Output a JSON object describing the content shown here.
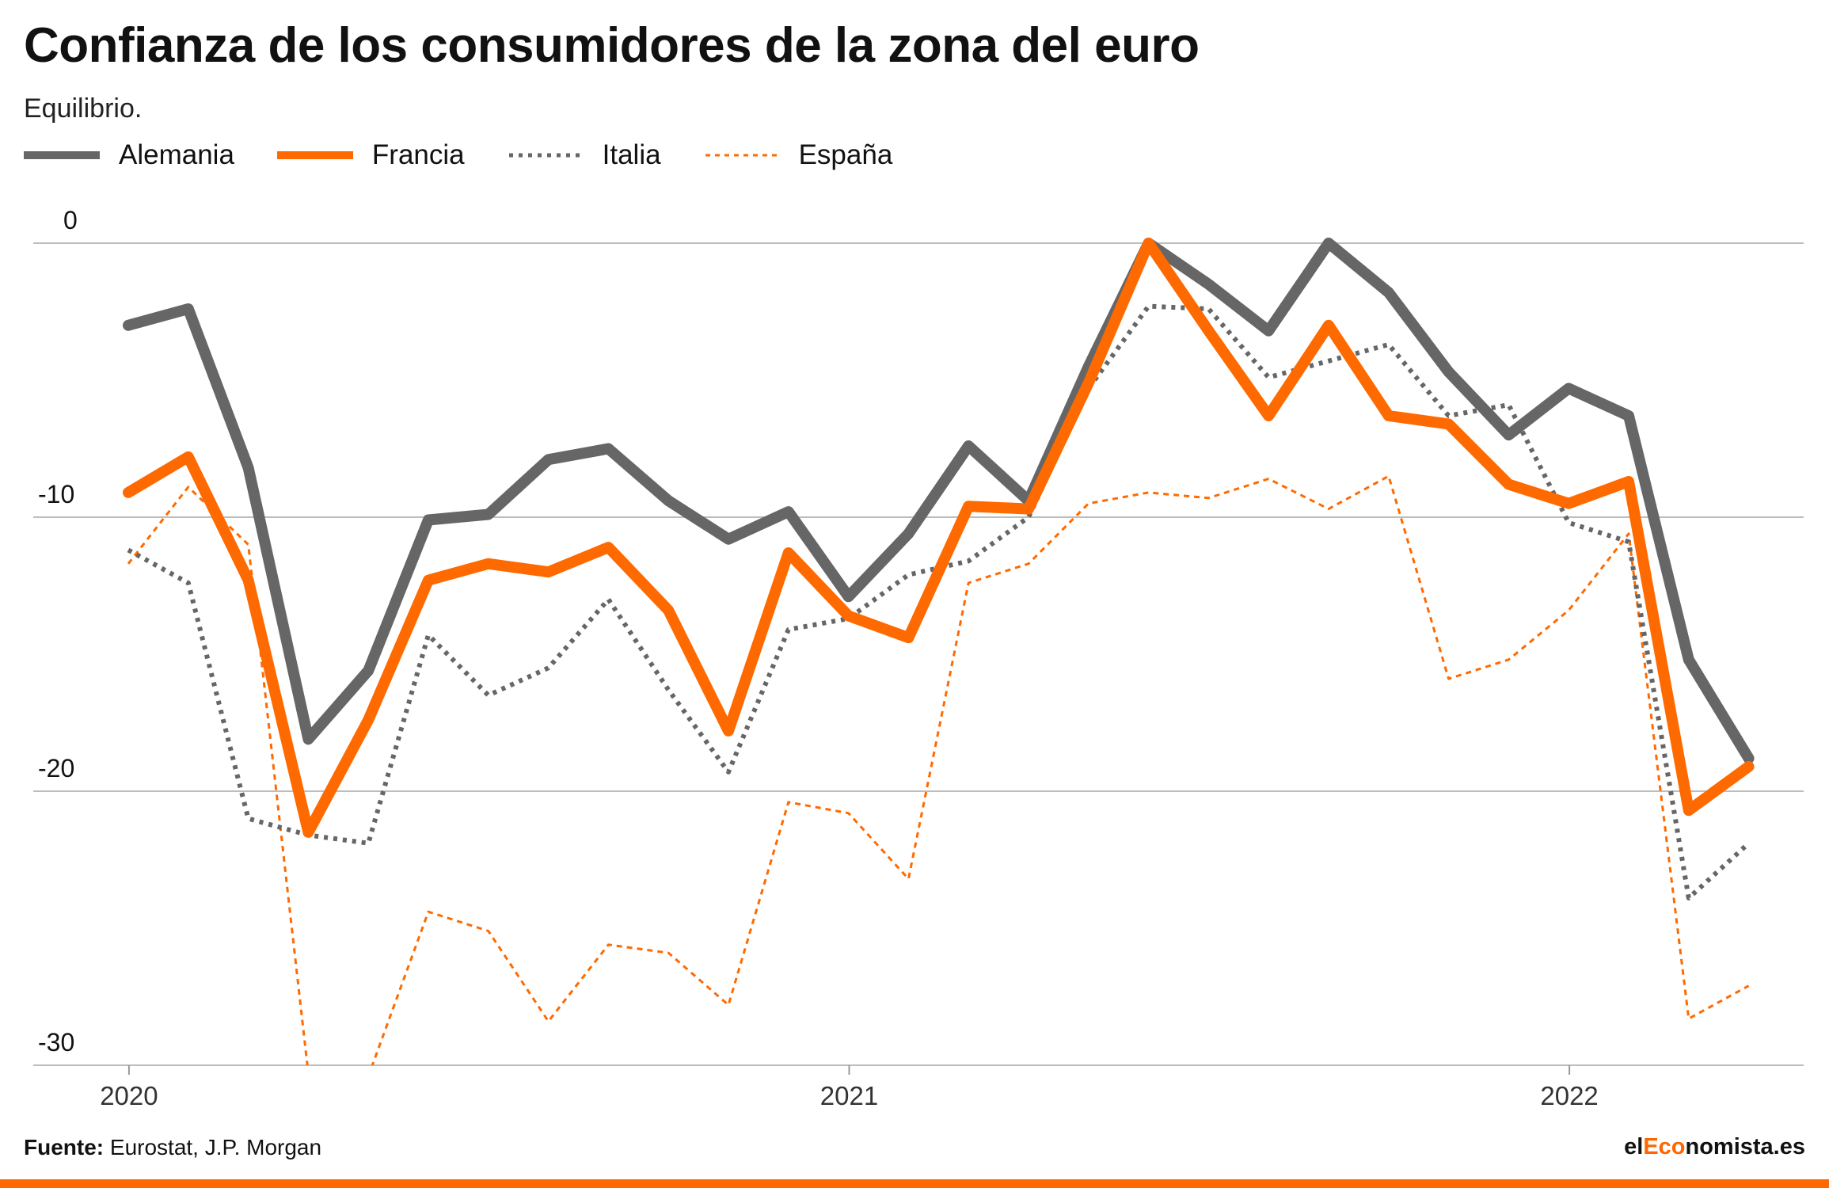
{
  "header": {
    "title": "Confianza de los consumidores de la zona del euro",
    "subtitle": "Equilibrio."
  },
  "legend": {
    "items": [
      "Alemania",
      "Francia",
      "Italia",
      "España"
    ]
  },
  "footer": {
    "source_label": "Fuente:",
    "source_text": "Eurostat, J.P. Morgan",
    "brand_prefix": "el",
    "brand_accent": "Eco",
    "brand_suffix": "nomista.es"
  },
  "colors": {
    "gray": "#666666",
    "orange": "#ff6a00",
    "grid": "#bdbdbd"
  },
  "chart_data": {
    "type": "line",
    "title": "Confianza de los consumidores de la zona del euro",
    "subtitle": "Equilibrio.",
    "ylim": [
      -30,
      0
    ],
    "yticks": [
      0,
      -10,
      -20,
      -30
    ],
    "x_tick_labels": [
      "2020",
      "2021",
      "2022"
    ],
    "x_tick_index": [
      0.5,
      12.5,
      24.5
    ],
    "x_start": "2020-01",
    "x_end": "2022-03",
    "grid": true,
    "legend_position": "top-left",
    "series": [
      {
        "name": "Alemania",
        "color": "#666666",
        "style": "solid-thick",
        "values": [
          -3.0,
          -2.4,
          -8.2,
          -18.1,
          -15.6,
          -10.1,
          -9.9,
          -7.9,
          -7.5,
          -9.4,
          -10.8,
          -9.8,
          -12.9,
          -10.6,
          -7.4,
          -9.4,
          -4.5,
          0.0,
          -1.5,
          -3.2,
          0.0,
          -1.8,
          -4.7,
          -7.0,
          -5.3,
          -6.3,
          -15.2,
          -18.8
        ]
      },
      {
        "name": "Francia",
        "color": "#ff6a00",
        "style": "solid-thick",
        "values": [
          -9.1,
          -7.8,
          -12.3,
          -21.5,
          -17.4,
          -12.3,
          -11.7,
          -12.0,
          -11.1,
          -13.4,
          -17.8,
          -11.3,
          -13.6,
          -14.4,
          -9.6,
          -9.7,
          -5.1,
          0.0,
          -3.2,
          -6.3,
          -3.0,
          -6.3,
          -6.6,
          -8.8,
          -9.5,
          -8.7,
          -20.7,
          -19.1
        ]
      },
      {
        "name": "Italia",
        "color": "#666666",
        "style": "dotted",
        "values": [
          -11.2,
          -12.4,
          -21.0,
          -21.6,
          -21.9,
          -14.3,
          -16.5,
          -15.5,
          -13.0,
          -16.3,
          -19.3,
          -14.1,
          -13.7,
          -12.1,
          -11.6,
          -10.0,
          -5.3,
          -2.3,
          -2.4,
          -4.9,
          -4.3,
          -3.7,
          -6.3,
          -5.9,
          -10.2,
          -10.9,
          -23.9,
          -21.9
        ]
      },
      {
        "name": "España",
        "color": "#ff6a00",
        "style": "dashed-thin",
        "values": [
          -11.7,
          -8.9,
          -11.0,
          -30.3,
          -30.4,
          -24.4,
          -25.1,
          -28.4,
          -25.6,
          -25.9,
          -27.8,
          -20.4,
          -20.8,
          -23.2,
          -12.4,
          -11.7,
          -9.5,
          -9.1,
          -9.3,
          -8.6,
          -9.7,
          -8.5,
          -15.9,
          -15.2,
          -13.4,
          -10.6,
          -28.3,
          -27.1
        ]
      }
    ]
  }
}
